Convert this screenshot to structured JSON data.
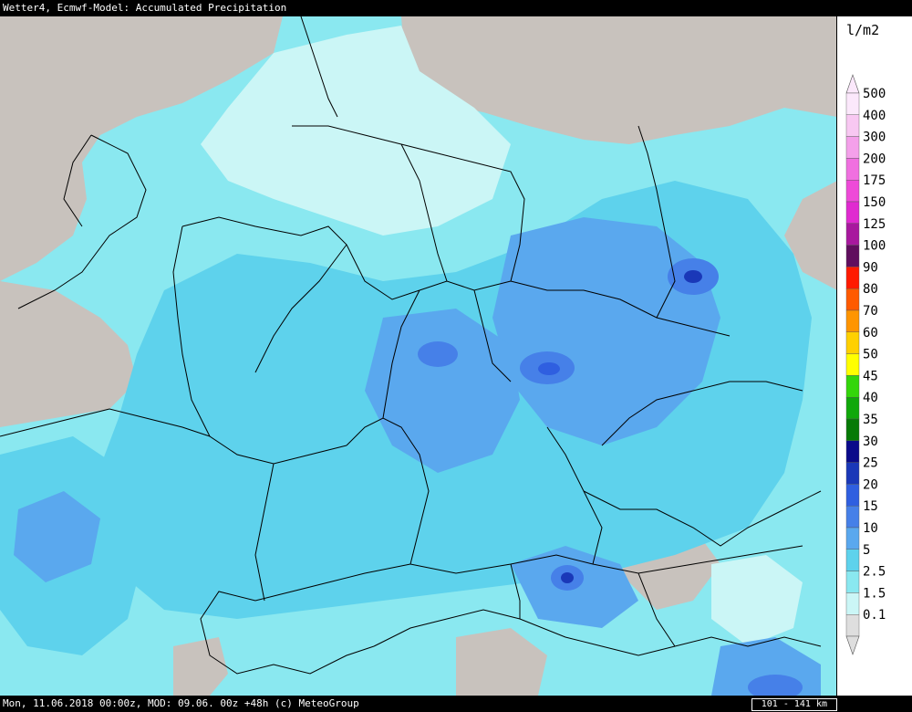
{
  "header": {
    "title": "Wetter4, Ecmwf-Model: Accumulated Precipitation"
  },
  "footer": {
    "valid_info": "Mon, 11.06.2018 00:00z, MOD: 09.06. 00z +48h (c) MeteoGroup",
    "scale": "101 - 141 km"
  },
  "legend": {
    "unit": "l/m2",
    "items": [
      {
        "label": "500",
        "color": "#fbe8fb"
      },
      {
        "label": "400",
        "color": "#f8c8f2"
      },
      {
        "label": "300",
        "color": "#f4a0ea"
      },
      {
        "label": "200",
        "color": "#f070e0"
      },
      {
        "label": "175",
        "color": "#ee4ad8"
      },
      {
        "label": "150",
        "color": "#e02ad0"
      },
      {
        "label": "125",
        "color": "#a8189e"
      },
      {
        "label": "100",
        "color": "#600e5e"
      },
      {
        "label": "90",
        "color": "#ff1a00"
      },
      {
        "label": "80",
        "color": "#ff5a00"
      },
      {
        "label": "70",
        "color": "#ff9500"
      },
      {
        "label": "60",
        "color": "#ffd000"
      },
      {
        "label": "50",
        "color": "#ffff00"
      },
      {
        "label": "45",
        "color": "#33d60a"
      },
      {
        "label": "40",
        "color": "#10a80a"
      },
      {
        "label": "35",
        "color": "#067a06"
      },
      {
        "label": "30",
        "color": "#0a0a8a"
      },
      {
        "label": "25",
        "color": "#1a38b8"
      },
      {
        "label": "20",
        "color": "#2f5fe0"
      },
      {
        "label": "15",
        "color": "#4680e8"
      },
      {
        "label": "10",
        "color": "#5aa8ee"
      },
      {
        "label": "5",
        "color": "#5ed2ec"
      },
      {
        "label": "2.5",
        "color": "#8ae8f0"
      },
      {
        "label": "1.5",
        "color": "#cbf6f6"
      },
      {
        "label": "0.1",
        "color": "#dedede"
      }
    ]
  },
  "map": {
    "colors": {
      "none": "#c8c2bd",
      "light": "#cbf6f6",
      "low": "#8ae8f0",
      "mid": "#5ed2ec",
      "high": "#5aa8ee",
      "higher": "#4680e8",
      "peak": "#2f5fe0",
      "max": "#1a38b8",
      "border": "#000000"
    }
  }
}
